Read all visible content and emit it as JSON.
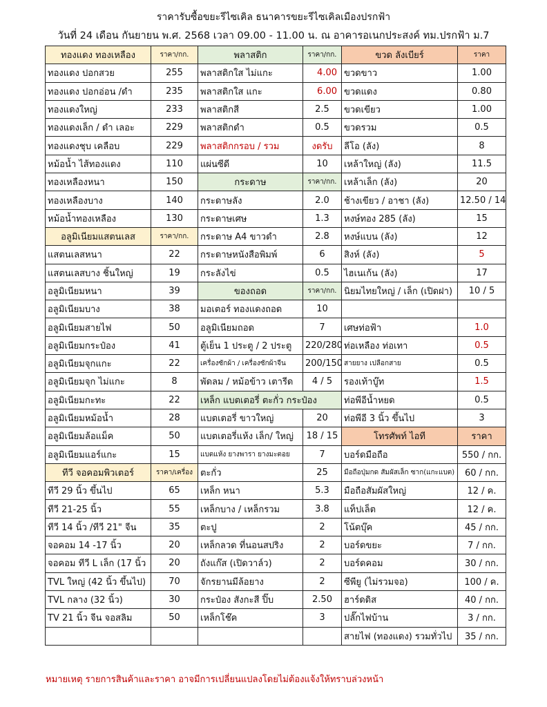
{
  "title": "ราคารับซื้อขยะรีไซเคิล ธนาคารขยะรีไซเคิลเมืองปรกฟ้า",
  "subtitle": "วันที่ 24 เดือน กันยายน พ.ศ. 2568  เวลา 09.00 - 11.00 น. ณ อาคารอเนกประสงค์ ทม.ปรกฟ้า ม.7",
  "note": "หมายเหตุ รายการสินค้าและราคา อาจมีการเปลี่ยนแปลงโดยไม่ต้องแจ้งให้ทราบล่วงหน้า",
  "colors": {
    "yellow_header": "#fdf1cf",
    "green_header": "#e2efda",
    "orange_header": "#f8cbad",
    "red_text": "#c00000"
  },
  "rows": [
    [
      {
        "t": "ทองแดง ทองเหลือง",
        "c": "yellow center"
      },
      {
        "t": "ราคา/กก.",
        "c": "yellow center small"
      },
      {
        "t": "พลาสติก",
        "c": "green center"
      },
      {
        "t": "ราคา/กก.",
        "c": "green center small"
      },
      {
        "t": "ขวด ลังเบียร์",
        "c": "orange center"
      },
      {
        "t": "ราคา",
        "c": "orange center small"
      }
    ],
    [
      {
        "t": "ทองแดง ปอกสวย"
      },
      {
        "t": "255",
        "c": "num"
      },
      {
        "t": "พลาสติกใส ไม่แกะ"
      },
      {
        "t": "4.00",
        "c": "right red"
      },
      {
        "t": "ขวดขาว"
      },
      {
        "t": "1.00",
        "c": "num"
      }
    ],
    [
      {
        "t": "ทองแดง ปอกอ่อน /ดำ"
      },
      {
        "t": "235",
        "c": "num"
      },
      {
        "t": "พลาสติกใส แกะ"
      },
      {
        "t": "6.00",
        "c": "right red"
      },
      {
        "t": "ขวดแดง"
      },
      {
        "t": "0.80",
        "c": "num"
      }
    ],
    [
      {
        "t": "ทองแดงใหญ่"
      },
      {
        "t": "233",
        "c": "num"
      },
      {
        "t": "พลาสติกสี"
      },
      {
        "t": "2.5",
        "c": "num"
      },
      {
        "t": "ขวดเขียว"
      },
      {
        "t": "1.00",
        "c": "num"
      }
    ],
    [
      {
        "t": "ทองแดงเล็ก / ดำ เลอะ"
      },
      {
        "t": "229",
        "c": "num"
      },
      {
        "t": "พลาสติกดำ"
      },
      {
        "t": "0.5",
        "c": "num"
      },
      {
        "t": "ขวดรวม"
      },
      {
        "t": "0.5",
        "c": "num"
      }
    ],
    [
      {
        "t": "ทองแดงชุบ เคลือบ"
      },
      {
        "t": "229",
        "c": "num"
      },
      {
        "t": "พลาสติกกรอบ / รวม",
        "c": "red"
      },
      {
        "t": "งดรับ",
        "c": "num red"
      },
      {
        "t": "ลีโอ (ลัง)"
      },
      {
        "t": "8",
        "c": "num"
      }
    ],
    [
      {
        "t": "หม้อน้ำ ไส้ทองแดง"
      },
      {
        "t": "110",
        "c": "num"
      },
      {
        "t": "แผ่นซีดี"
      },
      {
        "t": "10",
        "c": "num"
      },
      {
        "t": "เหล้าใหญ่ (ลัง)"
      },
      {
        "t": "11.5",
        "c": "num"
      }
    ],
    [
      {
        "t": "ทองเหลืองหนา"
      },
      {
        "t": "150",
        "c": "num"
      },
      {
        "t": "กระดาษ",
        "c": "green center"
      },
      {
        "t": "ราคา/กก.",
        "c": "green center small"
      },
      {
        "t": "เหล้าเล็ก (ลัง)"
      },
      {
        "t": "20",
        "c": "num"
      }
    ],
    [
      {
        "t": "ทองเหลืองบาง"
      },
      {
        "t": "140",
        "c": "num"
      },
      {
        "t": "กระดาษลัง"
      },
      {
        "t": "2.0",
        "c": "num"
      },
      {
        "t": "ช้างเขียว / อาชา (ลัง)"
      },
      {
        "t": "12.50 / 14",
        "c": "num"
      }
    ],
    [
      {
        "t": "หม้อน้ำทองเหลือง"
      },
      {
        "t": "130",
        "c": "num"
      },
      {
        "t": "กระดาษเศษ"
      },
      {
        "t": "1.3",
        "c": "num"
      },
      {
        "t": "หงษ์ทอง 285 (ลัง)"
      },
      {
        "t": "15",
        "c": "num"
      }
    ],
    [
      {
        "t": "อลูมิเนียมแสตนเลส",
        "c": "yellow center"
      },
      {
        "t": "ราคา/กก.",
        "c": "yellow center small"
      },
      {
        "t": "กระดาษ A4 ขาวดำ"
      },
      {
        "t": "2.8",
        "c": "num"
      },
      {
        "t": "หงษ์แบน (ลัง)"
      },
      {
        "t": "12",
        "c": "num"
      }
    ],
    [
      {
        "t": "แสตนเลสหนา"
      },
      {
        "t": "22",
        "c": "num"
      },
      {
        "t": "กระดาษหนังสือพิมพ์"
      },
      {
        "t": "6",
        "c": "num"
      },
      {
        "t": "สิงห์ (ลัง)"
      },
      {
        "t": "5",
        "c": "num red"
      }
    ],
    [
      {
        "t": "แสตนเลสบาง ชิ้นใหญ่"
      },
      {
        "t": "19",
        "c": "num"
      },
      {
        "t": "กระลังไข่"
      },
      {
        "t": "0.5",
        "c": "num"
      },
      {
        "t": "ไฮเนเก้น (ลัง)"
      },
      {
        "t": "17",
        "c": "num"
      }
    ],
    [
      {
        "t": "อลูมิเนียมหนา"
      },
      {
        "t": "39",
        "c": "num"
      },
      {
        "t": "ของถอด",
        "c": "green center"
      },
      {
        "t": "ราคา/กก.",
        "c": "green center small"
      },
      {
        "t": "นิยมไทยใหญ่ / เล็ก (เปิดฝา)"
      },
      {
        "t": "10 / 5",
        "c": "num"
      }
    ],
    [
      {
        "t": "อลูมิเนียมบาง"
      },
      {
        "t": "38",
        "c": "num"
      },
      {
        "t": "มอเตอร์ ทองแดงถอด"
      },
      {
        "t": "10",
        "c": "num"
      },
      {
        "t": ""
      },
      {
        "t": ""
      }
    ],
    [
      {
        "t": "อลูมิเนียมสายไฟ"
      },
      {
        "t": "50",
        "c": "num"
      },
      {
        "t": "อลูมิเนียมถอด"
      },
      {
        "t": "7",
        "c": "num"
      },
      {
        "t": "เศษท่อฟ้า"
      },
      {
        "t": "1.0",
        "c": "num red"
      }
    ],
    [
      {
        "t": "อลูมิเนียมกระป๋อง"
      },
      {
        "t": "41",
        "c": "num"
      },
      {
        "t": "ตู้เย็น 1 ประตู / 2 ประตู"
      },
      {
        "t": "220/280",
        "c": "num"
      },
      {
        "t": "ท่อเหลือง ท่อเทา"
      },
      {
        "t": "0.5",
        "c": "num red"
      }
    ],
    [
      {
        "t": "อลูมิเนียมจุกแกะ"
      },
      {
        "t": "22",
        "c": "num"
      },
      {
        "t": "เครื่องซักผ้า / เครื่องซักผ้าจีน",
        "c": "small"
      },
      {
        "t": "200/150",
        "c": "num"
      },
      {
        "t": "สายยาง เปลือกสาย",
        "c": "small"
      },
      {
        "t": "0.5",
        "c": "num"
      }
    ],
    [
      {
        "t": "อลูมิเนียมจุก ไม่แกะ"
      },
      {
        "t": "8",
        "c": "num"
      },
      {
        "t": "พัดลม / หม้อข้าว เตารีด"
      },
      {
        "t": "4 / 5",
        "c": "num"
      },
      {
        "t": "รองเท้าบู๊ท"
      },
      {
        "t": "1.5",
        "c": "num red"
      }
    ],
    [
      {
        "t": "อลูมิเนียมกะทะ"
      },
      {
        "t": "22",
        "c": "num"
      },
      {
        "t": "เหล็ก แบตเตอรี่ ตะกั่ว กระป๋อง",
        "c": "green",
        "span": 2
      },
      {
        "t": "ท่อพีอีน้ำหยด"
      },
      {
        "t": "0.5",
        "c": "num"
      }
    ],
    [
      {
        "t": "อลูมิเนียมหม้อน้ำ"
      },
      {
        "t": "28",
        "c": "num"
      },
      {
        "t": "แบตเตอรี่ ขาวใหญ่"
      },
      {
        "t": "20",
        "c": "num"
      },
      {
        "t": "ท่อพีอี 3 นิ้ว ขึ้นไป"
      },
      {
        "t": "3",
        "c": "num"
      }
    ],
    [
      {
        "t": "อลูมิเนียมล้อแม็ค"
      },
      {
        "t": "50",
        "c": "num"
      },
      {
        "t": "แบตเตอรี่แห้ง เล็ก/ ใหญ่"
      },
      {
        "t": "18 / 15",
        "c": "num"
      },
      {
        "t": "โทรศัพท์ ไอที",
        "c": "orange center"
      },
      {
        "t": "ราคา",
        "c": "orange center"
      }
    ],
    [
      {
        "t": "อลูมิเนียมแอร์แกะ"
      },
      {
        "t": "15",
        "c": "num"
      },
      {
        "t": "แบตแห้ง ยางพารา ยางมะตอย",
        "c": "small"
      },
      {
        "t": "7",
        "c": "num"
      },
      {
        "t": "บอร์ดมือถือ"
      },
      {
        "t": "550 / กก.",
        "c": "num"
      }
    ],
    [
      {
        "t": "ทีวี จอคอมพิวเตอร์",
        "c": "yellow center"
      },
      {
        "t": "ราคา/เครื่อง",
        "c": "yellow center small"
      },
      {
        "t": "ตะกั่ว"
      },
      {
        "t": "25",
        "c": "num"
      },
      {
        "t": "มือถือปุ่มกด สัมผัสเล็ก ซาก(แกะแบต)",
        "c": "small"
      },
      {
        "t": "60 / กก.",
        "c": "num"
      }
    ],
    [
      {
        "t": "ทีวี 29 นิ้ว ขึ้นไป"
      },
      {
        "t": "65",
        "c": "num"
      },
      {
        "t": "เหล็ก หนา"
      },
      {
        "t": "5.3",
        "c": "num"
      },
      {
        "t": "มือถือสัมผัสใหญ่"
      },
      {
        "t": "12 / ค.",
        "c": "num"
      }
    ],
    [
      {
        "t": "ทีวี 21-25 นิ้ว"
      },
      {
        "t": "55",
        "c": "num"
      },
      {
        "t": "เหล็กบาง / เหล็กรวม"
      },
      {
        "t": "3.8",
        "c": "num"
      },
      {
        "t": "แท็ปเล็ต"
      },
      {
        "t": "12 / ค.",
        "c": "num"
      }
    ],
    [
      {
        "t": "ทีวี 14 นิ้ว /ทีวี 21\" จีน"
      },
      {
        "t": "35",
        "c": "num"
      },
      {
        "t": "ตะปู"
      },
      {
        "t": "2",
        "c": "num"
      },
      {
        "t": "โน้ตบุ๊ค"
      },
      {
        "t": "45 / กก.",
        "c": "num"
      }
    ],
    [
      {
        "t": "จอคอม 14 -17 นิ้ว"
      },
      {
        "t": "20",
        "c": "num"
      },
      {
        "t": "เหล็กลวด ที่นอนสปริง"
      },
      {
        "t": "2",
        "c": "num"
      },
      {
        "t": "บอร์ดขยะ"
      },
      {
        "t": "7 / กก.",
        "c": "num"
      }
    ],
    [
      {
        "t": "จอคอม ทีวี L เล็ก (17 นิ้ว"
      },
      {
        "t": "20",
        "c": "num"
      },
      {
        "t": "ถังแก๊ส (เปิดวาล์ว)"
      },
      {
        "t": "2",
        "c": "num"
      },
      {
        "t": "บอร์ดคอม"
      },
      {
        "t": "30 / กก.",
        "c": "num"
      }
    ],
    [
      {
        "t": "TVL ใหญ่ (42 นิ้ว ขึ้นไป)"
      },
      {
        "t": "70",
        "c": "num"
      },
      {
        "t": "จักรยานมีล้อยาง"
      },
      {
        "t": "2",
        "c": "num"
      },
      {
        "t": "ซีพียู (ไม่รวมจอ)"
      },
      {
        "t": "100 / ค.",
        "c": "num"
      }
    ],
    [
      {
        "t": "TVL กลาง (32 นิ้ว)"
      },
      {
        "t": "30",
        "c": "num"
      },
      {
        "t": "กระป๋อง สังกะสี ปิ๊บ"
      },
      {
        "t": "2.50",
        "c": "num"
      },
      {
        "t": "ฮาร์ดดิส"
      },
      {
        "t": "40 / กก.",
        "c": "num"
      }
    ],
    [
      {
        "t": "TV 21 นิ้ว จีน จอสลิม"
      },
      {
        "t": "50",
        "c": "num"
      },
      {
        "t": "เหล็กโช๊ค"
      },
      {
        "t": "3",
        "c": "num"
      },
      {
        "t": "ปลั๊กไฟบ้าน"
      },
      {
        "t": "3 / กก.",
        "c": "num"
      }
    ],
    [
      {
        "t": ""
      },
      {
        "t": ""
      },
      {
        "t": ""
      },
      {
        "t": ""
      },
      {
        "t": "สายไฟ (ทองแดง) รวมทั่วไป"
      },
      {
        "t": "35 / กก.",
        "c": "num"
      }
    ]
  ]
}
